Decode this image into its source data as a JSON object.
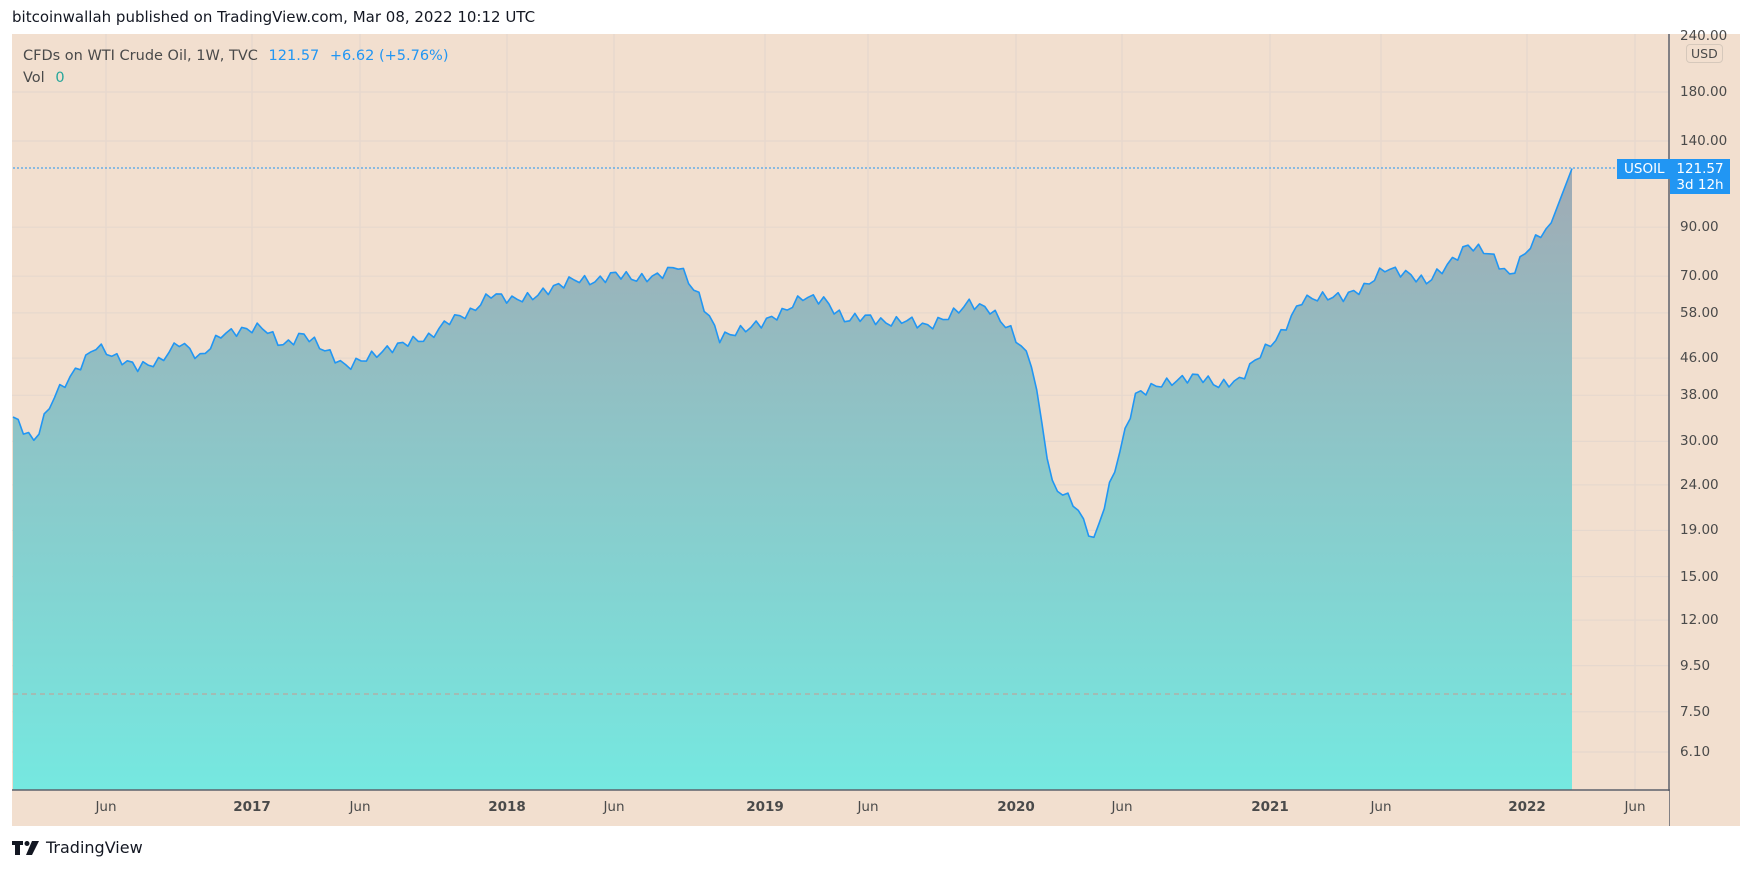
{
  "header": {
    "publish_line": "bitcoinwallah published on TradingView.com, Mar 08, 2022 10:12 UTC"
  },
  "legend": {
    "symbol_line": "CFDs on WTI Crude Oil, 1W, TVC",
    "last": "121.57",
    "change": "+6.62 (+5.76%)",
    "vol_label": "Vol",
    "vol_value": "0"
  },
  "price_axis": {
    "currency": "USD",
    "ticks": [
      "240.00",
      "180.00",
      "140.00",
      "90.00",
      "70.00",
      "58.00",
      "46.00",
      "38.00",
      "30.00",
      "24.00",
      "19.00",
      "15.00",
      "12.00",
      "9.50",
      "7.50",
      "6.10"
    ],
    "last_label": {
      "symbol": "USOIL",
      "price": "121.57",
      "countdown": "3d 12h"
    }
  },
  "time_axis": {
    "ticks": [
      {
        "label": "Jun",
        "year": false
      },
      {
        "label": "2017",
        "year": true
      },
      {
        "label": "Jun",
        "year": false
      },
      {
        "label": "2018",
        "year": true
      },
      {
        "label": "Jun",
        "year": false
      },
      {
        "label": "2019",
        "year": true
      },
      {
        "label": "Jun",
        "year": false
      },
      {
        "label": "2020",
        "year": true
      },
      {
        "label": "Jun",
        "year": false
      },
      {
        "label": "2021",
        "year": true
      },
      {
        "label": "Jun",
        "year": false
      },
      {
        "label": "2022",
        "year": true
      },
      {
        "label": "Jun",
        "year": false
      }
    ]
  },
  "footer": {
    "brand": "TradingView"
  },
  "colors": {
    "background": "#f2dfcf",
    "line": "#2196f3",
    "area_top": "#a0aab4",
    "area_bottom": "#75e8e0",
    "last_price": "#2196f3",
    "vol": "#26a69a"
  },
  "chart_data": {
    "type": "area",
    "title": "CFDs on WTI Crude Oil, 1W, TVC",
    "xlabel": "",
    "ylabel": "USD",
    "scale": "log",
    "ylim": [
      5.5,
      240
    ],
    "grid": true,
    "x": [
      "2016-02",
      "2016-03",
      "2016-04",
      "2016-05",
      "2016-06",
      "2016-07",
      "2016-08",
      "2016-09",
      "2016-10",
      "2016-11",
      "2016-12",
      "2017-01",
      "2017-02",
      "2017-03",
      "2017-04",
      "2017-05",
      "2017-06",
      "2017-07",
      "2017-08",
      "2017-09",
      "2017-10",
      "2017-11",
      "2017-12",
      "2018-01",
      "2018-02",
      "2018-03",
      "2018-04",
      "2018-05",
      "2018-06",
      "2018-07",
      "2018-08",
      "2018-09",
      "2018-10",
      "2018-11",
      "2018-12",
      "2019-01",
      "2019-02",
      "2019-03",
      "2019-04",
      "2019-05",
      "2019-06",
      "2019-07",
      "2019-08",
      "2019-09",
      "2019-10",
      "2019-11",
      "2019-12",
      "2020-01",
      "2020-02",
      "2020-03",
      "2020-03b",
      "2020-04",
      "2020-04b",
      "2020-05",
      "2020-06",
      "2020-07",
      "2020-08",
      "2020-09",
      "2020-10",
      "2020-11",
      "2020-12",
      "2021-01",
      "2021-02",
      "2021-03",
      "2021-04",
      "2021-05",
      "2021-06",
      "2021-07",
      "2021-08",
      "2021-09",
      "2021-10",
      "2021-11",
      "2021-12",
      "2022-01",
      "2022-02",
      "2022-03"
    ],
    "values": [
      34,
      30,
      38,
      43,
      49,
      46,
      44,
      45,
      50,
      46,
      52,
      53,
      54,
      49,
      52,
      48,
      44,
      46,
      48,
      50,
      51,
      56,
      58,
      64,
      62,
      63,
      66,
      69,
      68,
      71,
      69,
      70,
      74,
      63,
      51,
      53,
      55,
      58,
      63,
      62,
      56,
      57,
      55,
      56,
      54,
      57,
      61,
      59,
      53,
      45,
      24,
      22,
      18,
      26,
      38,
      40,
      41,
      42,
      40,
      41,
      47,
      52,
      62,
      63,
      63,
      66,
      73,
      71,
      68,
      74,
      82,
      79,
      70,
      82,
      92,
      121.57
    ],
    "last_value": 121.57,
    "annotations": [
      "USOIL 121.57",
      "3d 12h"
    ]
  }
}
